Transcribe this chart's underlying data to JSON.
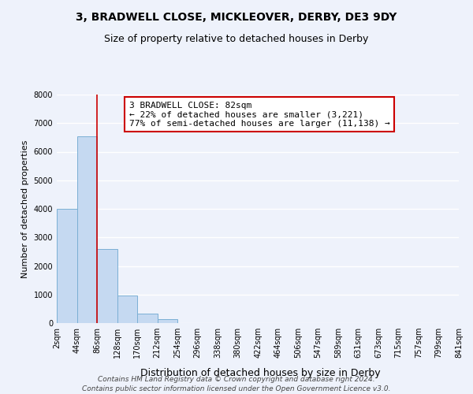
{
  "title": "3, BRADWELL CLOSE, MICKLEOVER, DERBY, DE3 9DY",
  "subtitle": "Size of property relative to detached houses in Derby",
  "xlabel": "Distribution of detached houses by size in Derby",
  "ylabel": "Number of detached properties",
  "bin_edges": [
    2,
    44,
    86,
    128,
    170,
    212,
    254,
    296,
    338,
    380,
    422,
    464,
    506,
    547,
    589,
    631,
    673,
    715,
    757,
    799,
    841
  ],
  "bar_heights": [
    4000,
    6550,
    2600,
    970,
    320,
    130,
    0,
    0,
    0,
    0,
    0,
    0,
    0,
    0,
    0,
    0,
    0,
    0,
    0,
    0
  ],
  "bar_color": "#c5d9f1",
  "bar_edge_color": "#7bafd4",
  "vline_x": 86,
  "vline_color": "#cc0000",
  "ylim": [
    0,
    8000
  ],
  "yticks": [
    0,
    1000,
    2000,
    3000,
    4000,
    5000,
    6000,
    7000,
    8000
  ],
  "xtick_labels": [
    "2sqm",
    "44sqm",
    "86sqm",
    "128sqm",
    "170sqm",
    "212sqm",
    "254sqm",
    "296sqm",
    "338sqm",
    "380sqm",
    "422sqm",
    "464sqm",
    "506sqm",
    "547sqm",
    "589sqm",
    "631sqm",
    "673sqm",
    "715sqm",
    "757sqm",
    "799sqm",
    "841sqm"
  ],
  "annotation_box_text_line1": "3 BRADWELL CLOSE: 82sqm",
  "annotation_box_text_line2": "← 22% of detached houses are smaller (3,221)",
  "annotation_box_text_line3": "77% of semi-detached houses are larger (11,138) →",
  "annotation_box_color": "#ffffff",
  "annotation_box_edge_color": "#cc0000",
  "bg_color": "#eef2fb",
  "grid_color": "#ffffff",
  "footer_text": "Contains HM Land Registry data © Crown copyright and database right 2024.\nContains public sector information licensed under the Open Government Licence v3.0.",
  "title_fontsize": 10,
  "subtitle_fontsize": 9,
  "xlabel_fontsize": 9,
  "ylabel_fontsize": 8,
  "tick_fontsize": 7,
  "annotation_fontsize": 8,
  "footer_fontsize": 6.5
}
